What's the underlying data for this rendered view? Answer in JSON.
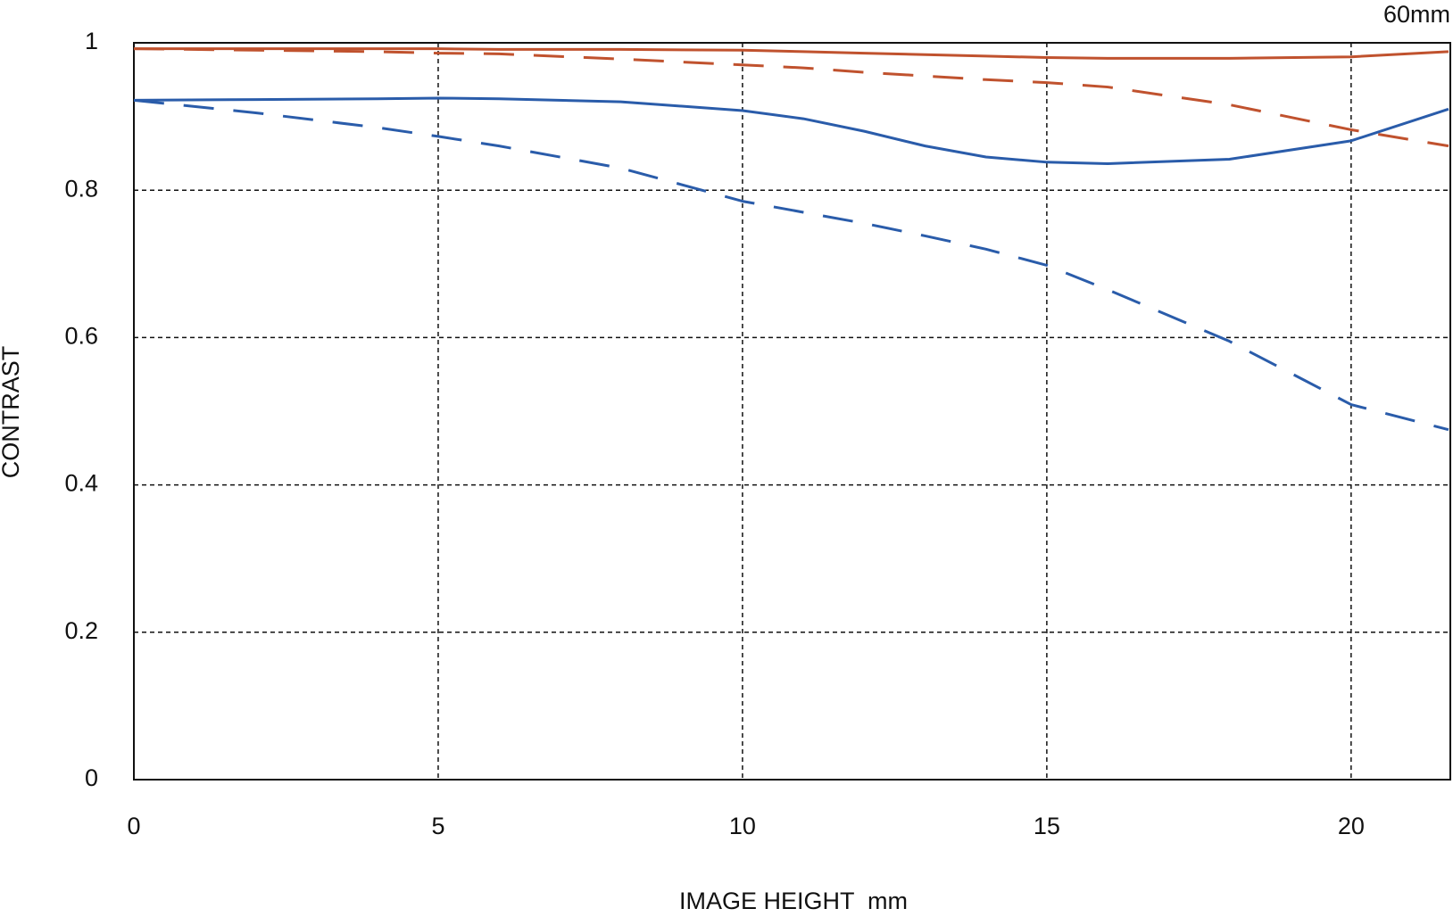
{
  "chart_data": {
    "type": "line",
    "title": "60mm",
    "x_label": "IMAGE HEIGHT  mm",
    "y_label": "CONTRAST",
    "x": [
      0,
      2,
      4,
      5,
      6,
      8,
      10,
      11,
      12,
      13,
      14,
      15,
      16,
      18,
      20,
      21.6
    ],
    "series": [
      {
        "color": "#c0522e",
        "line_style": "solid",
        "values": [
          0.992,
          0.992,
          0.992,
          0.992,
          0.991,
          0.991,
          0.99,
          0.988,
          0.986,
          0.984,
          0.982,
          0.98,
          0.979,
          0.979,
          0.981,
          0.988
        ]
      },
      {
        "color": "#c0522e",
        "line_style": "dashed",
        "values": [
          0.992,
          0.99,
          0.988,
          0.986,
          0.985,
          0.978,
          0.97,
          0.966,
          0.96,
          0.955,
          0.95,
          0.946,
          0.94,
          0.916,
          0.882,
          0.86
        ]
      },
      {
        "color": "#2a5caa",
        "line_style": "solid",
        "values": [
          0.922,
          0.923,
          0.924,
          0.925,
          0.924,
          0.92,
          0.908,
          0.897,
          0.88,
          0.86,
          0.845,
          0.838,
          0.836,
          0.842,
          0.867,
          0.91
        ]
      },
      {
        "color": "#2a5caa",
        "line_style": "dashed",
        "values": [
          0.922,
          0.905,
          0.885,
          0.873,
          0.86,
          0.83,
          0.785,
          0.77,
          0.755,
          0.738,
          0.72,
          0.698,
          0.665,
          0.595,
          0.509,
          0.475
        ]
      }
    ],
    "xlim": [
      0,
      21.63
    ],
    "xticks": [
      0,
      5,
      10,
      15,
      20
    ],
    "ylim": [
      0,
      1
    ],
    "yticks": [
      0,
      0.2,
      0.4,
      0.6,
      0.8,
      1
    ],
    "grid": true
  }
}
